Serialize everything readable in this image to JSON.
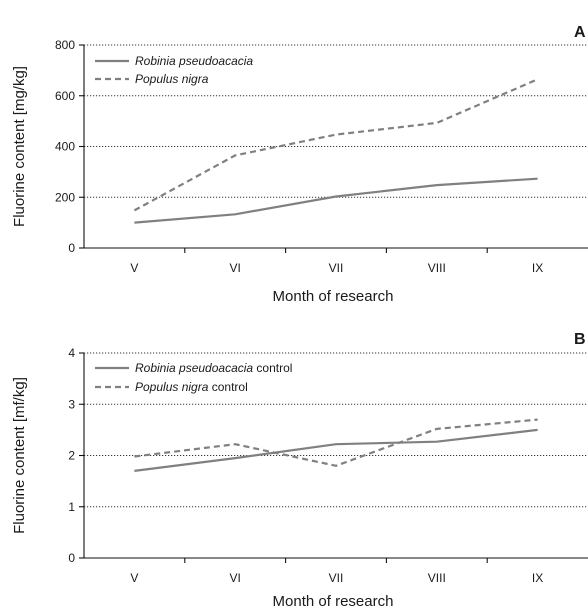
{
  "chart_data": [
    {
      "panel": "A",
      "type": "line",
      "categories": [
        "V",
        "VI",
        "VII",
        "VIII",
        "IX"
      ],
      "ylim": [
        0,
        800
      ],
      "yticks": [
        0,
        200,
        400,
        600,
        800
      ],
      "xlabel": "Month of research",
      "ylabel": "Fluorine content [mg/kg]",
      "grid": "horizontal dotted",
      "legend_position": "top-left",
      "series": [
        {
          "name": "Robinia pseudoacacia",
          "name_suffix": "",
          "style": "solid",
          "color": "#808080",
          "values": [
            100,
            133,
            203,
            248,
            273
          ]
        },
        {
          "name": "Populus nigra",
          "name_suffix": "",
          "style": "dashed",
          "color": "#808080",
          "values": [
            148,
            365,
            447,
            493,
            665
          ]
        }
      ]
    },
    {
      "panel": "B",
      "type": "line",
      "categories": [
        "V",
        "VI",
        "VII",
        "VIII",
        "IX"
      ],
      "ylim": [
        0,
        4
      ],
      "yticks": [
        0,
        1,
        2,
        3,
        4
      ],
      "xlabel": "Month of research",
      "ylabel": "Fluorine content [mf/kg]",
      "grid": "horizontal dotted",
      "legend_position": "top-left",
      "series": [
        {
          "name": "Robinia pseudoacacia",
          "name_suffix": " control",
          "style": "solid",
          "color": "#808080",
          "values": [
            1.7,
            1.95,
            2.22,
            2.27,
            2.5
          ]
        },
        {
          "name": "Populus nigra",
          "name_suffix": " control",
          "style": "dashed",
          "color": "#808080",
          "values": [
            1.98,
            2.22,
            1.8,
            2.52,
            2.7
          ]
        }
      ]
    }
  ]
}
